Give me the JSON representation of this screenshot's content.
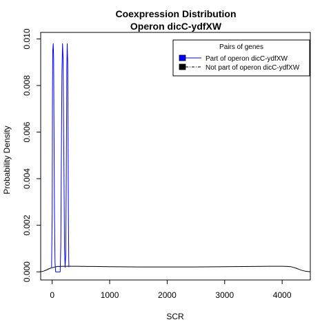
{
  "chart_data": {
    "type": "line",
    "title": [
      "Coexpression Distribution",
      "Operon dicC-ydfXW"
    ],
    "xlabel": "SCR",
    "ylabel": "Probability Density",
    "xlim": [
      -200,
      4490
    ],
    "ylim": [
      -0.00035,
      0.01028
    ],
    "x_ticks": [
      0,
      1000,
      2000,
      3000,
      4000
    ],
    "x_tick_labels": [
      "0",
      "1000",
      "2000",
      "3000",
      "4000"
    ],
    "y_ticks": [
      0.0,
      0.002,
      0.004,
      0.006,
      0.008,
      0.01
    ],
    "y_tick_labels": [
      "0.000",
      "0.002",
      "0.004",
      "0.006",
      "0.008",
      "0.010"
    ],
    "grid": false,
    "legend": {
      "title": "Pairs of genes",
      "placement": "top-right",
      "entries": [
        "Part of operon dicC-ydfXW",
        "Not part of operon dicC-ydfXW"
      ]
    },
    "series": [
      {
        "name": "Part of operon dicC-ydfXW",
        "color": "#0000ff",
        "line_style": "solid",
        "x": [
          -10,
          0,
          5,
          10,
          18,
          25,
          30,
          40,
          50,
          60,
          100,
          140,
          150,
          160,
          170,
          180,
          190,
          200,
          215,
          225,
          235,
          245,
          255,
          262,
          270,
          276,
          282,
          288,
          292
        ],
        "y": [
          0.0002,
          0.0025,
          0.0075,
          0.0095,
          0.0098,
          0.0092,
          0.0068,
          0.0025,
          0.0004,
          0.0,
          0.0,
          0.0,
          0.0012,
          0.005,
          0.0085,
          0.0098,
          0.0092,
          0.006,
          0.001,
          0.0002,
          0.0007,
          0.004,
          0.0088,
          0.0098,
          0.009,
          0.006,
          0.0025,
          0.0005,
          0.0002
        ]
      },
      {
        "name": "Not part of operon dicC-ydfXW",
        "color": "#000000",
        "line_style": "solid",
        "x": [
          -200,
          -150,
          -100,
          -50,
          0,
          50,
          100,
          200,
          400,
          700,
          1000,
          1500,
          2000,
          2500,
          3000,
          3500,
          3800,
          4000,
          4100,
          4150,
          4200,
          4250,
          4300,
          4350,
          4400,
          4450,
          4490
        ],
        "y": [
          0.0,
          3e-05,
          8e-05,
          0.00014,
          0.00018,
          0.00021,
          0.00023,
          0.00024,
          0.00024,
          0.00023,
          0.00022,
          0.00021,
          0.00021,
          0.00021,
          0.00022,
          0.00023,
          0.00024,
          0.00024,
          0.00023,
          0.00022,
          0.00019,
          0.00015,
          0.0001,
          6e-05,
          3e-05,
          1e-05,
          0.0
        ]
      }
    ]
  }
}
